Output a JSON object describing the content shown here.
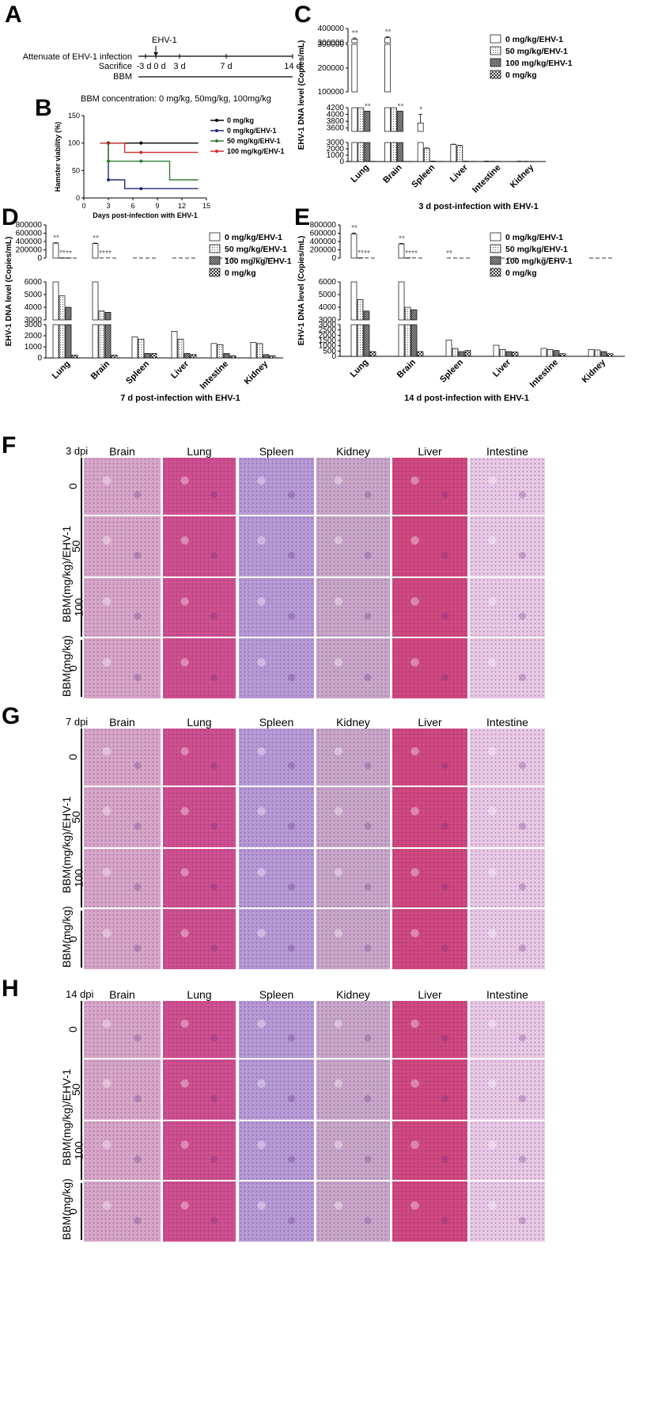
{
  "panels": {
    "A": {
      "letter": "A",
      "ehv_label": "EHV-1",
      "rows": [
        "Attenuate of EHV-1 infection",
        "Sacrifice",
        "BBM"
      ],
      "ticks": [
        "-3 d",
        "0 d",
        "3 d",
        "7 d",
        "14 d"
      ],
      "concentration": "BBM concentration:  0 mg/kg, 50mg/kg, 100mg/kg"
    },
    "B": {
      "letter": "B"
    },
    "C": {
      "letter": "C"
    },
    "D": {
      "letter": "D"
    },
    "E": {
      "letter": "E"
    },
    "F": {
      "letter": "F",
      "dpi": "3 dpi"
    },
    "G": {
      "letter": "G",
      "dpi": "7 dpi"
    },
    "H": {
      "letter": "H",
      "dpi": "14 dpi"
    }
  },
  "histology": {
    "columns": [
      "Brain",
      "Lung",
      "Spleen",
      "Kidney",
      "Liver",
      "Intestine"
    ],
    "row_doses": [
      "0",
      "50",
      "100",
      "0"
    ],
    "group_ehv": "BBM(mg/kg)/EHV-1",
    "group_ctrl": "BBM(mg/kg)",
    "tissue_colors": {
      "Brain": "#d7a6c8",
      "Lung": "#cf4f8f",
      "Spleen": "#b79ad6",
      "Kidney": "#c9a7c9",
      "Liver": "#d0487e",
      "Intestine": "#e9c9e6"
    }
  },
  "chart_data": [
    {
      "panel": "B",
      "type": "line",
      "xlabel": "Days post-infection with EHV-1",
      "ylabel": "Hamster viability (%)",
      "xlim": [
        0,
        15
      ],
      "ylim": [
        0,
        150
      ],
      "xticks": [
        0,
        3,
        6,
        9,
        12,
        15
      ],
      "yticks": [
        0,
        50,
        100,
        150
      ],
      "legend_position": "right",
      "series": [
        {
          "name": "0 mg/kg",
          "color": "#000000",
          "x": [
            2,
            14
          ],
          "y": [
            100,
            100
          ],
          "markers_x": [
            3,
            7
          ],
          "markers_y": [
            100,
            100
          ]
        },
        {
          "name": "0 mg/kg/EHV-1",
          "color": "#1f2a7a",
          "x": [
            2,
            3,
            3,
            5,
            5,
            14
          ],
          "y": [
            100,
            100,
            33,
            33,
            17,
            17
          ],
          "markers_x": [
            3,
            7
          ],
          "markers_y": [
            33,
            17
          ]
        },
        {
          "name": "50 mg/kg/EHV-1",
          "color": "#2e7d32",
          "x": [
            2,
            3,
            3,
            10.5,
            10.5,
            14
          ],
          "y": [
            100,
            100,
            67,
            67,
            33,
            33
          ],
          "markers_x": [
            3,
            7
          ],
          "markers_y": [
            67,
            67
          ]
        },
        {
          "name": "100 mg/kg/EHV-1",
          "color": "#d32f2f",
          "x": [
            2,
            5,
            5,
            14
          ],
          "y": [
            100,
            100,
            83,
            83
          ],
          "markers_x": [
            7
          ],
          "markers_y": [
            83
          ]
        }
      ]
    },
    {
      "panel": "C",
      "type": "bar",
      "title": "3 d post-infection with EHV-1",
      "ylabel": "EHV-1 DNA level (Copies/mL)",
      "categories": [
        "Lung",
        "Brain",
        "Spleen",
        "Liver",
        "Intestine",
        "Kidney"
      ],
      "segments": [
        {
          "range": [
            300000,
            400000
          ],
          "ticks": [
            300000,
            400000
          ],
          "tick_labels": [
            "300000",
            "400000"
          ]
        },
        {
          "range": [
            100000,
            300000
          ],
          "ticks": [
            100000,
            200000,
            300000
          ],
          "tick_labels": [
            "100000",
            "200000",
            "300000"
          ]
        },
        {
          "range": [
            3500,
            4200
          ],
          "ticks": [
            3600,
            3800,
            4000,
            4200
          ],
          "tick_labels": [
            "3600",
            "3800",
            "4000",
            "4200"
          ]
        },
        {
          "range": [
            0,
            3000
          ],
          "ticks": [
            0,
            1000,
            2000,
            3000
          ],
          "tick_labels": [
            "0",
            "1000",
            "2000",
            "3000"
          ]
        }
      ],
      "series": [
        {
          "name": "0 mg/kg/EHV-1",
          "pattern": "white",
          "values": [
            325000,
            335000,
            3750,
            2700,
            50,
            40
          ],
          "errors": [
            8000,
            6000,
            250,
            40,
            10,
            10
          ],
          "stars": [
            "**",
            "**",
            "*",
            "",
            "",
            ""
          ]
        },
        {
          "name": "50 mg/kg/EHV-1",
          "pattern": "dots",
          "values": [
            5000,
            5000,
            2100,
            2500,
            30,
            30
          ],
          "errors": [
            0,
            0,
            50,
            50,
            5,
            5
          ],
          "stars": [
            "**",
            "**",
            "",
            "",
            "",
            ""
          ]
        },
        {
          "name": "100 mg/kg/EHV-1",
          "pattern": "grid",
          "values": [
            4100,
            4100,
            50,
            40,
            20,
            20
          ],
          "errors": [
            0,
            0,
            5,
            5,
            5,
            5
          ],
          "stars": [
            "**",
            "**",
            "",
            "",
            "",
            ""
          ]
        },
        {
          "name": "0 mg/kg",
          "pattern": "check",
          "values": [
            30,
            30,
            30,
            30,
            20,
            20
          ],
          "errors": [
            0,
            0,
            0,
            0,
            0,
            0
          ],
          "stars": [
            "",
            "",
            "",
            "",
            "",
            ""
          ]
        }
      ]
    },
    {
      "panel": "D",
      "type": "bar",
      "title": "7 d post-infection with EHV-1",
      "ylabel": "EHV-1 DNA level (Copies/mL)",
      "categories": [
        "Lung",
        "Brain",
        "Spleen",
        "Liver",
        "Intestine",
        "Kidney"
      ],
      "segments": [
        {
          "range": [
            0,
            800000
          ],
          "ticks": [
            0,
            200000,
            400000,
            600000,
            800000
          ],
          "tick_labels": [
            "0",
            "200000",
            "400000",
            "600000",
            "800000"
          ]
        },
        {
          "range": [
            3000,
            6000
          ],
          "ticks": [
            3000,
            4000,
            5000,
            6000
          ],
          "tick_labels": [
            "3000",
            "4000",
            "5000",
            "6000"
          ]
        },
        {
          "range": [
            0,
            3000
          ],
          "ticks": [
            0,
            1000,
            2000,
            3000
          ],
          "tick_labels": [
            "0",
            "1000",
            "2000",
            "3000"
          ]
        }
      ],
      "series": [
        {
          "name": "0 mg/kg/EHV-1",
          "pattern": "white",
          "values": [
            360000,
            350000,
            1900,
            2400,
            1300,
            1400
          ],
          "errors": [
            10000,
            10000,
            50,
            500,
            100,
            50
          ],
          "stars": [
            "**",
            "**",
            "",
            "",
            "",
            ""
          ]
        },
        {
          "name": "50 mg/kg/EHV-1",
          "pattern": "dots",
          "values": [
            4900,
            3700,
            1700,
            1700,
            1200,
            1300
          ],
          "errors": [
            600,
            150,
            80,
            60,
            70,
            60
          ],
          "stars": [
            "**",
            "**",
            "",
            "",
            "",
            ""
          ]
        },
        {
          "name": "100 mg/kg/EHV-1",
          "pattern": "grid",
          "values": [
            4000,
            3600,
            400,
            400,
            400,
            300
          ],
          "errors": [
            400,
            200,
            30,
            30,
            30,
            30
          ],
          "stars": [
            "**",
            "**",
            "",
            "",
            "",
            ""
          ]
        },
        {
          "name": "0 mg/kg",
          "pattern": "check",
          "values": [
            250,
            250,
            400,
            300,
            200,
            200
          ],
          "errors": [
            20,
            20,
            20,
            20,
            20,
            20
          ],
          "stars": [
            "",
            "",
            "",
            "",
            "",
            ""
          ]
        }
      ]
    },
    {
      "panel": "E",
      "type": "bar",
      "title": "14 d post-infection with EHV-1",
      "ylabel": "EHV-1 DNA level (Copies/mL)",
      "categories": [
        "Lung",
        "Brain",
        "Spleen",
        "Liver",
        "Intestine",
        "Kidney"
      ],
      "segments": [
        {
          "range": [
            0,
            800000
          ],
          "ticks": [
            0,
            200000,
            400000,
            600000,
            800000
          ],
          "tick_labels": [
            "0",
            "200000",
            "400000",
            "600000",
            "800000"
          ]
        },
        {
          "range": [
            3000,
            6000
          ],
          "ticks": [
            3000,
            4000,
            5000,
            6000
          ],
          "tick_labels": [
            "3000",
            "4000",
            "5000",
            "6000"
          ]
        },
        {
          "range": [
            0,
            3000
          ],
          "ticks": [
            0,
            500,
            1000,
            1500,
            2000,
            2500,
            3000
          ],
          "tick_labels": [
            "0",
            "500",
            "1000",
            "1500",
            "2000",
            "2500",
            "3000"
          ]
        }
      ],
      "series": [
        {
          "name": "0 mg/kg/EHV-1",
          "pattern": "white",
          "values": [
            580000,
            340000,
            1550,
            1050,
            750,
            650
          ],
          "errors": [
            25000,
            15000,
            350,
            100,
            40,
            30
          ],
          "stars": [
            "**",
            "**",
            "**",
            "",
            "",
            ""
          ]
        },
        {
          "name": "50 mg/kg/EHV-1",
          "pattern": "dots",
          "values": [
            4600,
            4000,
            750,
            650,
            650,
            600
          ],
          "errors": [
            300,
            80,
            50,
            40,
            40,
            40
          ],
          "stars": [
            "**",
            "**",
            "",
            "",
            "",
            ""
          ]
        },
        {
          "name": "100 mg/kg/EHV-1",
          "pattern": "grid",
          "values": [
            3700,
            3800,
            450,
            450,
            550,
            450
          ],
          "errors": [
            100,
            80,
            30,
            30,
            30,
            30
          ],
          "stars": [
            "**",
            "**",
            "",
            "",
            "",
            ""
          ]
        },
        {
          "name": "0 mg/kg",
          "pattern": "check",
          "values": [
            450,
            450,
            550,
            400,
            250,
            250
          ],
          "errors": [
            20,
            20,
            40,
            20,
            20,
            20
          ],
          "stars": [
            "",
            "",
            "",
            "",
            "",
            ""
          ]
        }
      ]
    }
  ]
}
